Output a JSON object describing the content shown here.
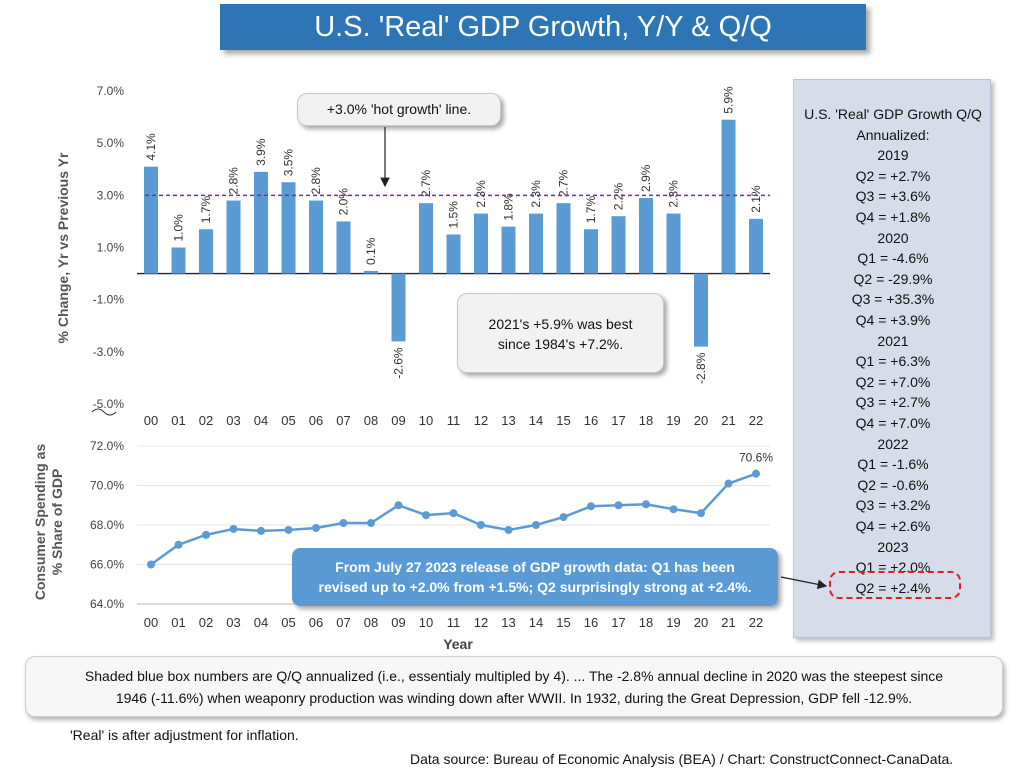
{
  "title": "U.S. 'Real' GDP Growth, Y/Y & Q/Q",
  "chart_data": [
    {
      "type": "bar",
      "ylabel": "% Change, Yr vs Previous Yr",
      "yticks": [
        "7.0%",
        "5.0%",
        "3.0%",
        "1.0%",
        "-1.0%",
        "-3.0%",
        "-5.0%"
      ],
      "ylim": [
        -5,
        7
      ],
      "categories": [
        "00",
        "01",
        "02",
        "03",
        "04",
        "05",
        "06",
        "07",
        "08",
        "09",
        "10",
        "11",
        "12",
        "13",
        "14",
        "15",
        "16",
        "17",
        "18",
        "19",
        "20",
        "21",
        "22"
      ],
      "values": [
        4.1,
        1.0,
        1.7,
        2.8,
        3.9,
        3.5,
        2.8,
        2.0,
        0.1,
        -2.6,
        2.7,
        1.5,
        2.3,
        1.8,
        2.3,
        2.7,
        1.7,
        2.2,
        2.9,
        2.3,
        -2.8,
        5.9,
        2.1
      ],
      "value_labels": [
        "4.1%",
        "1.0%",
        "1.7%",
        "2.8%",
        "3.9%",
        "3.5%",
        "2.8%",
        "2.0%",
        "0.1%",
        "-2.6%",
        "2.7%",
        "1.5%",
        "2.3%",
        "1.8%",
        "2.3%",
        "2.7%",
        "1.7%",
        "2.2%",
        "2.9%",
        "2.3%",
        "-2.8%",
        "5.9%",
        "2.1%"
      ],
      "reference_line": 3.0,
      "bar_color": "#5b9bd5",
      "line_color": "#7030a0"
    },
    {
      "type": "line",
      "ylabel": "Consumer Spending as % Share of GDP",
      "xlabel": "Year",
      "yticks": [
        "72.0%",
        "70.0%",
        "68.0%",
        "66.0%",
        "64.0%"
      ],
      "ylim": [
        64,
        72
      ],
      "categories": [
        "00",
        "01",
        "02",
        "03",
        "04",
        "05",
        "06",
        "07",
        "08",
        "09",
        "10",
        "11",
        "12",
        "13",
        "14",
        "15",
        "16",
        "17",
        "18",
        "19",
        "20",
        "21",
        "22"
      ],
      "values": [
        66.0,
        67.0,
        67.5,
        67.8,
        67.7,
        67.75,
        67.85,
        68.1,
        68.1,
        69.0,
        68.5,
        68.6,
        68.0,
        67.75,
        68.0,
        68.4,
        68.95,
        69.0,
        69.05,
        68.8,
        68.6,
        70.1,
        70.6
      ],
      "end_label": "70.6%",
      "line_color": "#5b9bd5"
    }
  ],
  "hot_growth_callout": "+3.0% 'hot growth'  line.",
  "best_callout": [
    "2021's +5.9% was best",
    "since 1984's +7.2%."
  ],
  "side_panel": {
    "lines": [
      "U.S. 'Real' GDP Growth Q/Q",
      "Annualized:",
      "2019",
      "Q2 =  +2.7%",
      "Q3 =  +3.6%",
      "Q4 =  +1.8%",
      "2020",
      "Q1 =   -4.6%",
      "Q2 = -29.9%",
      "Q3 = +35.3%",
      "Q4 =   +3.9%",
      "2021",
      "Q1 =  +6.3%",
      "Q2 =  +7.0%",
      "Q3 =  +2.7%",
      "Q4 =  +7.0%",
      "2022",
      "Q1 =  -1.6%",
      "Q2 =  -0.6%",
      "Q3 =  +3.2%",
      "Q4 =  +2.6%",
      "2023",
      "Q1 =  +2.0%",
      "Q2 =  +2.4%"
    ]
  },
  "revision_callout": [
    "From July 27 2023 release of GDP growth data: Q1 has been",
    "revised up to +2.0% from +1.5%; Q2 surprisingly strong at +2.4%."
  ],
  "footer": [
    "Shaded blue box numbers are Q/Q annualized (i.e., essentialy multipled by 4). ... The -2.8% annual decline in 2020 was the steepest since",
    "1946 (-11.6%) when weaponry production was winding down after WWII. In 1932, during the Great Depression, GDP fell -12.9%."
  ],
  "real_note": "'Real' is after adjustment for inflation.",
  "source": "Data source: Bureau of Economic Analysis (BEA) / Chart: ConstructConnect-CanaData."
}
